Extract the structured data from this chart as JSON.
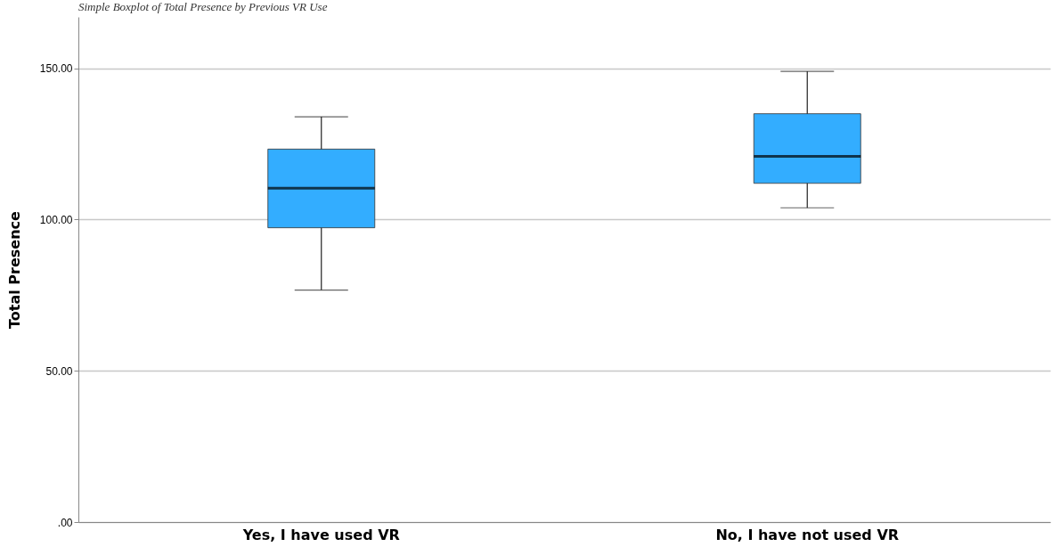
{
  "chart_data": {
    "type": "box",
    "title": "Simple Boxplot of Total Presence by Previous VR Use",
    "ylabel": "Total Presence",
    "categories": [
      "Yes, I have used VR",
      "No, I have not used VR"
    ],
    "boxes": [
      {
        "low": 76.7,
        "q1": 97.3,
        "median": 110.4,
        "q3": 123.3,
        "high": 134
      },
      {
        "low": 103.9,
        "q1": 112,
        "median": 120.9,
        "q3": 135,
        "high": 149
      }
    ],
    "color": "#33adff",
    "ylim": [
      0,
      167
    ],
    "yticks": [
      {
        "value": 0,
        "label": ".00"
      },
      {
        "value": 50,
        "label": "50.00"
      },
      {
        "value": 100,
        "label": "100.00"
      },
      {
        "value": 150,
        "label": "150.00"
      }
    ],
    "grid": "y"
  }
}
